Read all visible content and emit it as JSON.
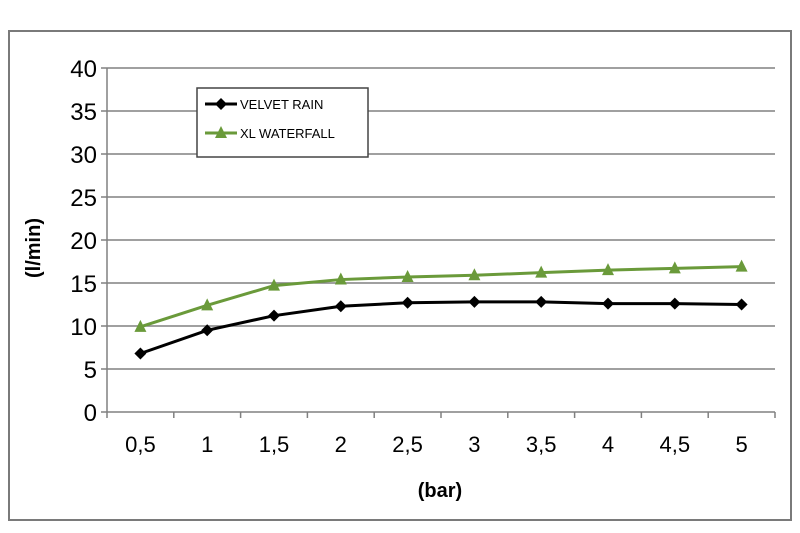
{
  "chart_data": {
    "type": "line",
    "title": "",
    "xlabel": "(bar)",
    "ylabel": "(l/min)",
    "categories": [
      "0,5",
      "1",
      "1,5",
      "2",
      "2,5",
      "3",
      "3,5",
      "4",
      "4,5",
      "5"
    ],
    "ylim": [
      0,
      40
    ],
    "yticks": [
      "0",
      "5",
      "10",
      "15",
      "20",
      "25",
      "30",
      "35",
      "40"
    ],
    "grid": true,
    "legend_position": "top-left",
    "series": [
      {
        "name": "VELVET RAIN",
        "color": "#000000",
        "marker": "diamond",
        "values": [
          6.8,
          9.5,
          11.2,
          12.3,
          12.7,
          12.8,
          12.8,
          12.6,
          12.6,
          12.5
        ]
      },
      {
        "name": "XL WATERFALL",
        "color": "#6a9a3a",
        "marker": "triangle",
        "values": [
          9.9,
          12.4,
          14.7,
          15.4,
          15.7,
          15.9,
          16.2,
          16.5,
          16.7,
          16.9
        ]
      }
    ]
  }
}
